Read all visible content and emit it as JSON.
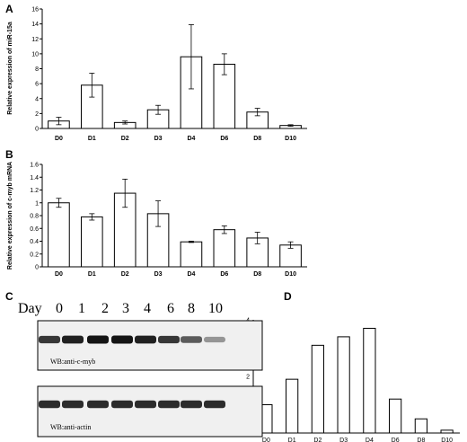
{
  "panels": {
    "A": "A",
    "B": "B",
    "C": "C",
    "D": "D"
  },
  "chart_data": [
    {
      "panel": "A",
      "type": "bar",
      "categories": [
        "D0",
        "D1",
        "D2",
        "D3",
        "D4",
        "D6",
        "D8",
        "D10"
      ],
      "values": [
        1.0,
        5.8,
        0.8,
        2.5,
        9.6,
        8.6,
        2.2,
        0.4
      ],
      "errors": [
        0.5,
        1.6,
        0.2,
        0.6,
        4.3,
        1.4,
        0.5,
        0.1
      ],
      "ylabel": "Relative expression of miR-15a",
      "ylim": [
        0,
        16
      ],
      "yticks": [
        "0",
        "2",
        "4",
        "6",
        "8",
        "10",
        "12",
        "14",
        "16"
      ],
      "grid": false
    },
    {
      "panel": "B",
      "type": "bar",
      "categories": [
        "D0",
        "D1",
        "D2",
        "D3",
        "D4",
        "D6",
        "D8",
        "D10"
      ],
      "values": [
        1.0,
        0.78,
        1.15,
        0.83,
        0.39,
        0.58,
        0.45,
        0.34
      ],
      "errors": [
        0.07,
        0.05,
        0.22,
        0.2,
        0.01,
        0.06,
        0.09,
        0.05
      ],
      "ylabel": "Relative expression of c-myb mRNA",
      "ylim": [
        0,
        1.6
      ],
      "yticks": [
        "0",
        "0.2",
        "0.4",
        "0.6",
        "0.8",
        "1",
        "1.2",
        "1.4",
        "1.6"
      ],
      "grid": false
    },
    {
      "panel": "D",
      "type": "bar",
      "categories": [
        "D0",
        "D1",
        "D2",
        "D3",
        "D4",
        "D6",
        "D8",
        "D10"
      ],
      "values": [
        1.0,
        1.9,
        3.1,
        3.4,
        3.7,
        1.2,
        0.5,
        0.1
      ],
      "ylim": [
        0,
        4
      ],
      "yticks": [
        "0",
        "0.5",
        "1",
        "1.5",
        "2",
        "2.5",
        "3",
        "3.5",
        "4"
      ],
      "grid": false
    }
  ],
  "blot": {
    "day_label": "Day",
    "days": [
      "0",
      "1",
      "2",
      "3",
      "4",
      "6",
      "8",
      "10"
    ],
    "band_intensity_top": [
      0.85,
      0.95,
      1.0,
      1.0,
      0.95,
      0.85,
      0.7,
      0.45
    ],
    "band_intensity_bottom": [
      0.9,
      0.9,
      0.9,
      0.9,
      0.9,
      0.9,
      0.9,
      0.9
    ],
    "top_label": "WB:anti-c-myb",
    "bottom_label": "WB:anti-actin"
  }
}
